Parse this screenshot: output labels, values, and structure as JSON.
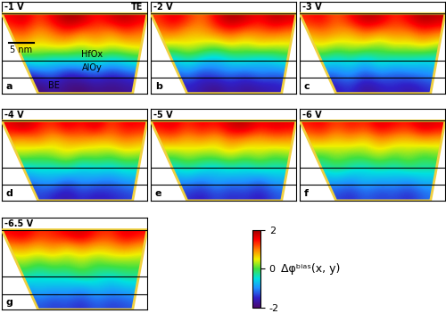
{
  "chart_data": {
    "type": "heatmap_panels",
    "layer_labels": {
      "top": "TE",
      "upper": "HfOx",
      "lower": "AlOy",
      "bottom": "BE"
    },
    "scale_bar": "5 nm",
    "colorbar": {
      "range": [
        -2,
        2
      ],
      "ticks": [
        -2,
        0,
        2
      ],
      "label": "Δφᵇⁱᵃˢ(x, y)"
    },
    "panels": [
      {
        "title": "-1 V",
        "letter": "a",
        "cells": [
          [
            1.5,
            1.8,
            1.2,
            1.6,
            2.0,
            1.9,
            1.4,
            1.7,
            1.9,
            1.6
          ],
          [
            1.0,
            1.2,
            0.8,
            1.0,
            1.3,
            0.9,
            1.1,
            0.8,
            1.2,
            1.0
          ],
          [
            0.5,
            0.7,
            0.4,
            0.6,
            0.5,
            0.3,
            0.6,
            0.4,
            0.5,
            0.6
          ],
          [
            -0.3,
            -0.5,
            -0.2,
            -0.6,
            -0.4,
            -0.5,
            -0.3,
            -0.6,
            -0.4,
            -0.2
          ],
          [
            -1.2,
            -1.5,
            -1.3,
            -1.1,
            -1.6,
            -1.4,
            -1.2,
            -1.5,
            -1.3,
            -1.2
          ],
          [
            -1.8,
            -1.9,
            -2.0,
            -1.7,
            -1.9,
            -2.0,
            -1.8,
            -1.9,
            -1.8,
            -1.7
          ]
        ]
      },
      {
        "title": "-2 V",
        "letter": "b",
        "cells": [
          [
            1.3,
            1.7,
            1.4,
            1.0,
            1.6,
            2.0,
            1.8,
            1.5,
            1.9,
            1.7
          ],
          [
            0.9,
            1.1,
            0.7,
            0.8,
            1.0,
            1.2,
            0.9,
            1.0,
            1.1,
            0.9
          ],
          [
            0.4,
            0.2,
            0.5,
            0.3,
            0.1,
            0.4,
            0.2,
            0.5,
            0.3,
            0.4
          ],
          [
            -0.4,
            -0.7,
            -0.3,
            -0.6,
            -0.8,
            -0.5,
            -0.4,
            -0.7,
            -0.5,
            -0.3
          ],
          [
            -1.1,
            -1.3,
            -1.0,
            -1.4,
            -1.2,
            -1.1,
            -1.3,
            -1.0,
            -1.2,
            -1.1
          ],
          [
            -1.6,
            -1.8,
            -1.5,
            -1.7,
            -1.9,
            -1.6,
            -1.8,
            -1.7,
            -1.6,
            -1.5
          ]
        ]
      },
      {
        "title": "-3 V",
        "letter": "c",
        "cells": [
          [
            1.4,
            1.6,
            1.1,
            1.5,
            1.9,
            1.8,
            1.3,
            1.6,
            2.0,
            1.8
          ],
          [
            0.8,
            1.0,
            0.9,
            0.7,
            1.1,
            0.8,
            1.0,
            0.9,
            1.2,
            1.0
          ],
          [
            0.3,
            0.5,
            0.2,
            0.4,
            0.3,
            0.1,
            0.4,
            0.3,
            0.5,
            0.2
          ],
          [
            -0.5,
            -0.3,
            -0.6,
            -0.4,
            -0.7,
            -0.3,
            -0.5,
            -0.4,
            -0.6,
            -0.5
          ],
          [
            -1.0,
            -1.2,
            -1.1,
            -0.9,
            -1.3,
            -1.0,
            -1.2,
            -1.1,
            -1.0,
            -0.9
          ],
          [
            -1.5,
            -1.7,
            -1.6,
            -1.4,
            -1.8,
            -1.6,
            -1.5,
            -1.7,
            -1.5,
            -1.4
          ]
        ]
      },
      {
        "title": "-4 V",
        "letter": "d",
        "cells": [
          [
            1.6,
            1.9,
            1.5,
            1.3,
            1.7,
            1.4,
            1.8,
            1.2,
            1.6,
            1.5
          ],
          [
            0.9,
            0.7,
            1.0,
            0.6,
            0.8,
            0.9,
            0.7,
            0.8,
            1.0,
            0.8
          ],
          [
            0.2,
            0.4,
            0.1,
            0.3,
            0.5,
            0.2,
            0.3,
            0.1,
            0.4,
            0.3
          ],
          [
            -0.4,
            -0.6,
            -0.3,
            -0.5,
            -0.2,
            -0.6,
            -0.4,
            -0.5,
            -0.3,
            -0.4
          ],
          [
            -0.9,
            -1.1,
            -1.0,
            -0.8,
            -1.2,
            -0.9,
            -1.0,
            -1.1,
            -0.9,
            -0.8
          ],
          [
            -1.4,
            -1.6,
            -1.3,
            -1.5,
            -1.7,
            -1.4,
            -1.6,
            -1.5,
            -1.4,
            -1.3
          ]
        ]
      },
      {
        "title": "-5 V",
        "letter": "e",
        "cells": [
          [
            1.5,
            1.7,
            1.3,
            1.6,
            1.4,
            1.8,
            1.9,
            1.5,
            1.7,
            1.6
          ],
          [
            0.8,
            1.0,
            0.7,
            0.9,
            0.6,
            1.0,
            0.8,
            0.7,
            0.9,
            0.8
          ],
          [
            0.3,
            0.1,
            0.4,
            0.2,
            0.3,
            0.5,
            0.2,
            0.4,
            0.1,
            0.3
          ],
          [
            -0.3,
            -0.5,
            -0.2,
            -0.4,
            -0.6,
            -0.3,
            -0.5,
            -0.2,
            -0.4,
            -0.3
          ],
          [
            -0.8,
            -1.0,
            -0.9,
            -1.1,
            -0.8,
            -1.0,
            -0.9,
            -1.2,
            -0.8,
            -0.9
          ],
          [
            -1.3,
            -1.5,
            -1.4,
            -1.6,
            -1.3,
            -1.5,
            -1.4,
            -1.6,
            -1.3,
            -1.2
          ]
        ]
      },
      {
        "title": "-6 V",
        "letter": "f",
        "cells": [
          [
            1.4,
            1.6,
            1.2,
            1.5,
            1.3,
            1.7,
            1.5,
            1.4,
            1.8,
            1.6
          ],
          [
            0.7,
            0.9,
            0.6,
            0.8,
            0.5,
            0.9,
            0.7,
            0.6,
            0.8,
            0.7
          ],
          [
            0.2,
            0.0,
            0.3,
            0.1,
            0.2,
            0.4,
            0.1,
            0.3,
            0.0,
            0.2
          ],
          [
            -0.3,
            -0.4,
            -0.1,
            -0.3,
            -0.5,
            -0.2,
            -0.4,
            -0.1,
            -0.3,
            -0.2
          ],
          [
            -0.7,
            -0.9,
            -0.8,
            -1.0,
            -0.7,
            -0.9,
            -0.8,
            -1.0,
            -0.7,
            -0.8
          ],
          [
            -1.2,
            -1.4,
            -1.3,
            -1.5,
            -1.2,
            -1.4,
            -1.3,
            -1.5,
            -1.2,
            -1.1
          ]
        ]
      },
      {
        "title": "-6.5 V",
        "letter": "g",
        "cells": [
          [
            1.5,
            1.7,
            1.3,
            1.4,
            1.6,
            1.8,
            1.4,
            1.3,
            1.7,
            1.5
          ],
          [
            0.7,
            0.8,
            0.6,
            0.9,
            0.5,
            0.8,
            0.6,
            0.7,
            0.9,
            0.6
          ],
          [
            0.1,
            0.3,
            0.0,
            0.2,
            0.1,
            0.3,
            0.0,
            0.2,
            0.1,
            0.2
          ],
          [
            -0.4,
            -0.2,
            -0.5,
            -0.3,
            -0.4,
            -0.1,
            -0.3,
            -0.5,
            -0.2,
            -0.3
          ],
          [
            -0.8,
            -1.0,
            -0.7,
            -0.9,
            -0.8,
            -1.0,
            -0.7,
            -0.9,
            -0.8,
            -0.7
          ],
          [
            -1.3,
            -1.5,
            -1.2,
            -1.4,
            -1.3,
            -1.5,
            -1.2,
            -1.4,
            -1.3,
            -1.2
          ]
        ]
      }
    ]
  }
}
